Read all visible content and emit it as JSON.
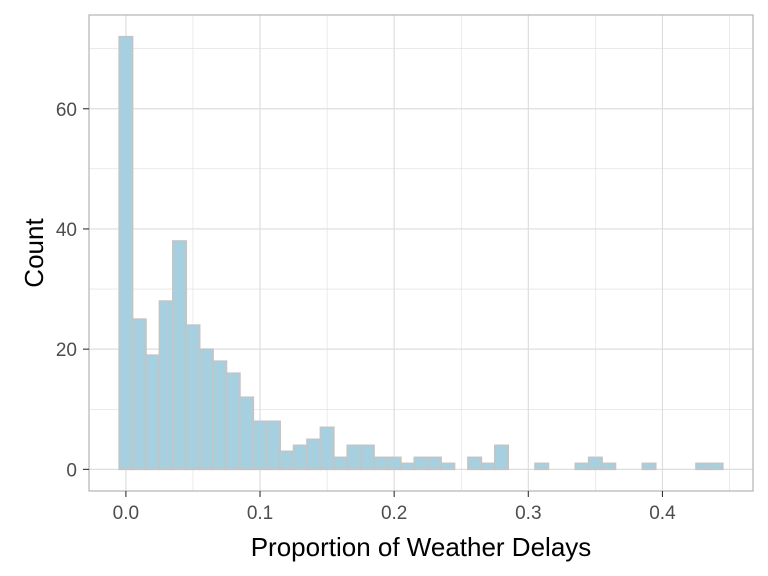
{
  "chart_data": {
    "type": "bar",
    "title": "",
    "xlabel": "Proportion of Weather Delays",
    "ylabel": "Count",
    "xlim": [
      -0.0275,
      0.4675
    ],
    "ylim": [
      -3.6,
      75.6
    ],
    "x_ticks": [
      "0.0",
      "0.1",
      "0.2",
      "0.3",
      "0.4"
    ],
    "y_ticks": [
      "0",
      "20",
      "40",
      "60"
    ],
    "bin_width": 0.01,
    "bin_centers": [
      0.0,
      0.01,
      0.02,
      0.03,
      0.04,
      0.05,
      0.06,
      0.07,
      0.08,
      0.09,
      0.1,
      0.11,
      0.12,
      0.13,
      0.14,
      0.15,
      0.16,
      0.17,
      0.18,
      0.19,
      0.2,
      0.21,
      0.22,
      0.23,
      0.24,
      0.25,
      0.26,
      0.27,
      0.28,
      0.29,
      0.3,
      0.31,
      0.32,
      0.33,
      0.34,
      0.35,
      0.36,
      0.37,
      0.38,
      0.39,
      0.4,
      0.41,
      0.42,
      0.43,
      0.44
    ],
    "values": [
      72,
      25,
      19,
      28,
      38,
      24,
      20,
      18,
      16,
      12,
      8,
      8,
      3,
      4,
      5,
      7,
      2,
      4,
      4,
      2,
      2,
      1,
      2,
      2,
      1,
      0,
      2,
      1,
      4,
      0,
      0,
      1,
      0,
      0,
      1,
      2,
      1,
      0,
      0,
      1,
      0,
      0,
      0,
      1,
      1
    ],
    "grid": true,
    "legend": "none",
    "colors": {
      "bar_fill": "#a6d0e0",
      "bar_stroke": "#c4c4c4",
      "grid": "#dedede",
      "panel_border": "#b3b3b3"
    }
  }
}
